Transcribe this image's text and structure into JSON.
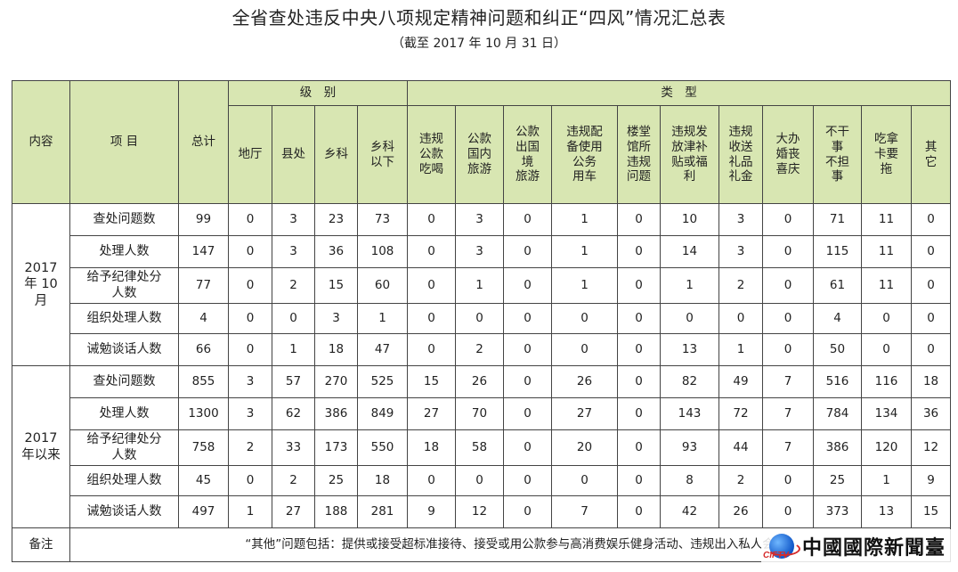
{
  "title": "全省查处违反中央八项规定精神问题和纠正“四风”情况汇总表",
  "subtitle": "（截至 2017 年 10 月 31 日）",
  "header": {
    "content": "内容",
    "item": "项 目",
    "total": "总计",
    "level_group": "级　别",
    "type_group": "类　型",
    "level_cols": [
      "地厅",
      "县处",
      "乡科",
      "乡科\n以下"
    ],
    "type_cols": [
      "违规\n公款\n吃喝",
      "公款\n国内\n旅游",
      "公款\n出国\n境\n旅游",
      "违规配\n备使用\n公务\n用车",
      "楼堂\n馆所\n违规\n问题",
      "违规发\n放津补\n贴或福\n利",
      "违规\n收送\n礼品\n礼金",
      "大办\n婚丧\n喜庆",
      "不干\n事\n不担\n事",
      "吃拿\n卡要\n拖",
      "其\n它"
    ]
  },
  "blocks": [
    {
      "label": "2017\n年 10\n月",
      "rows": [
        {
          "item": "查处问题数",
          "values": [
            "99",
            "0",
            "3",
            "23",
            "73",
            "0",
            "3",
            "0",
            "1",
            "0",
            "10",
            "3",
            "0",
            "71",
            "11",
            "0"
          ]
        },
        {
          "item": "处理人数",
          "values": [
            "147",
            "0",
            "3",
            "36",
            "108",
            "0",
            "3",
            "0",
            "1",
            "0",
            "14",
            "3",
            "0",
            "115",
            "11",
            "0"
          ]
        },
        {
          "item": "给予纪律处分\n人数",
          "values": [
            "77",
            "0",
            "2",
            "15",
            "60",
            "0",
            "1",
            "0",
            "1",
            "0",
            "1",
            "2",
            "0",
            "61",
            "11",
            "0"
          ]
        },
        {
          "item": "组织处理人数",
          "values": [
            "4",
            "0",
            "0",
            "3",
            "1",
            "0",
            "0",
            "0",
            "0",
            "0",
            "0",
            "0",
            "0",
            "4",
            "0",
            "0"
          ]
        },
        {
          "item": "诫勉谈话人数",
          "values": [
            "66",
            "0",
            "1",
            "18",
            "47",
            "0",
            "2",
            "0",
            "0",
            "0",
            "13",
            "1",
            "0",
            "50",
            "0",
            "0"
          ]
        }
      ]
    },
    {
      "label": "2017\n年以来",
      "rows": [
        {
          "item": "查处问题数",
          "values": [
            "855",
            "3",
            "57",
            "270",
            "525",
            "15",
            "26",
            "0",
            "26",
            "0",
            "82",
            "49",
            "7",
            "516",
            "116",
            "18"
          ]
        },
        {
          "item": "处理人数",
          "values": [
            "1300",
            "3",
            "62",
            "386",
            "849",
            "27",
            "70",
            "0",
            "27",
            "0",
            "143",
            "72",
            "7",
            "784",
            "134",
            "36"
          ]
        },
        {
          "item": "给予纪律处分\n人数",
          "values": [
            "758",
            "2",
            "33",
            "173",
            "550",
            "18",
            "58",
            "0",
            "20",
            "0",
            "93",
            "44",
            "7",
            "386",
            "120",
            "12"
          ]
        },
        {
          "item": "组织处理人数",
          "values": [
            "45",
            "0",
            "2",
            "25",
            "18",
            "0",
            "0",
            "0",
            "0",
            "0",
            "8",
            "2",
            "0",
            "25",
            "1",
            "9"
          ]
        },
        {
          "item": "诫勉谈话人数",
          "values": [
            "497",
            "1",
            "27",
            "188",
            "281",
            "9",
            "12",
            "0",
            "7",
            "0",
            "42",
            "26",
            "0",
            "373",
            "13",
            "15"
          ]
        }
      ]
    }
  ],
  "remark": {
    "label": "备注",
    "text": "“其他”问题包括：提供或接受超标准接待、接受或用公款参与高消费娱乐健身活动、违规出入私人会所、"
  },
  "watermark": {
    "brand": "中國國際新聞臺",
    "logo_text": "CIFTV",
    "logo_icon": "globe-logo-icon"
  }
}
